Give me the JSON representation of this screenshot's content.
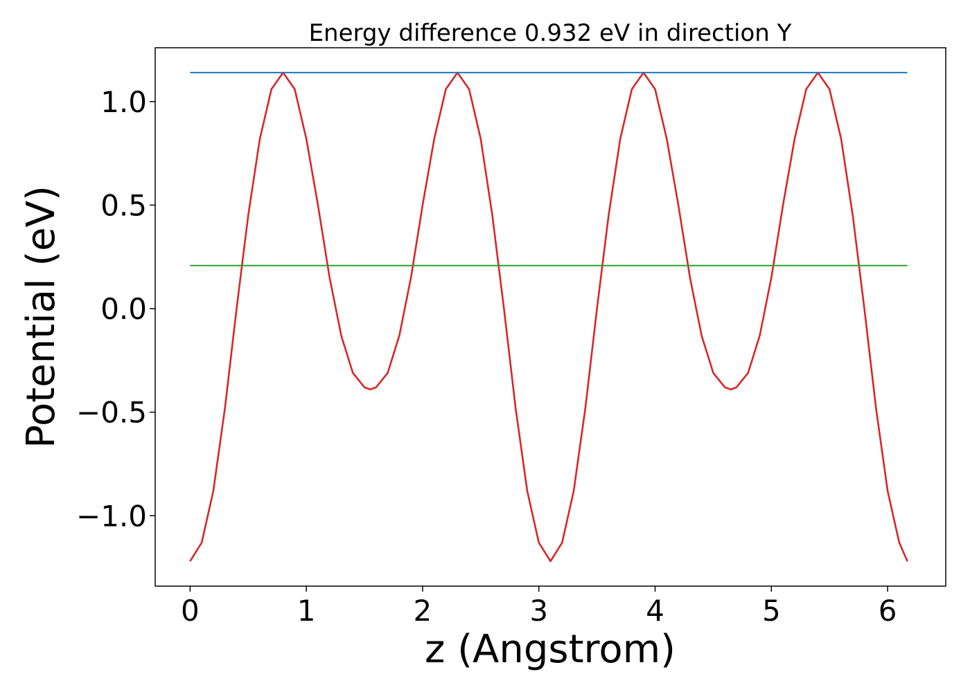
{
  "chart_data": {
    "type": "line",
    "title": "Energy difference 0.932 eV in direction Y",
    "xlabel": "z (Angstrom)",
    "ylabel": "Potential (eV)",
    "xlim": [
      -0.3,
      6.5
    ],
    "ylim": [
      -1.34,
      1.26
    ],
    "xticks": [
      0,
      1,
      2,
      3,
      4,
      5,
      6
    ],
    "xtick_labels": [
      "0",
      "1",
      "2",
      "3",
      "4",
      "5",
      "6"
    ],
    "yticks": [
      -1.0,
      -0.5,
      0.0,
      0.5,
      1.0
    ],
    "ytick_labels": [
      "−1.0",
      "−0.5",
      "0.0",
      "0.5",
      "1.0"
    ],
    "grid": false,
    "legend": "none",
    "series": [
      {
        "color": "#d62728",
        "x": [
          0.0,
          0.1,
          0.2,
          0.3,
          0.4,
          0.5,
          0.6,
          0.7,
          0.8,
          0.9,
          1.0,
          1.1,
          1.2,
          1.3,
          1.4,
          1.5,
          1.55,
          1.6,
          1.7,
          1.8,
          1.9,
          2.0,
          2.1,
          2.2,
          2.3,
          2.4,
          2.5,
          2.6,
          2.7,
          2.8,
          2.9,
          3.0,
          3.1,
          3.2,
          3.3,
          3.4,
          3.5,
          3.6,
          3.7,
          3.8,
          3.9,
          4.0,
          4.1,
          4.2,
          4.3,
          4.4,
          4.5,
          4.6,
          4.65,
          4.7,
          4.8,
          4.9,
          5.0,
          5.1,
          5.2,
          5.3,
          5.4,
          5.5,
          5.6,
          5.7,
          5.8,
          5.9,
          6.0,
          6.1,
          6.17
        ],
        "y": [
          -1.22,
          -1.13,
          -0.88,
          -0.48,
          -0.0,
          0.45,
          0.82,
          1.06,
          1.14,
          1.06,
          0.82,
          0.5,
          0.15,
          -0.13,
          -0.31,
          -0.38,
          -0.39,
          -0.38,
          -0.31,
          -0.13,
          0.15,
          0.5,
          0.82,
          1.06,
          1.14,
          1.06,
          0.82,
          0.45,
          -0.0,
          -0.48,
          -0.88,
          -1.13,
          -1.22,
          -1.13,
          -0.88,
          -0.48,
          -0.0,
          0.45,
          0.82,
          1.06,
          1.14,
          1.06,
          0.82,
          0.5,
          0.15,
          -0.13,
          -0.31,
          -0.38,
          -0.39,
          -0.38,
          -0.31,
          -0.13,
          0.15,
          0.5,
          0.82,
          1.06,
          1.14,
          1.06,
          0.82,
          0.45,
          -0.0,
          -0.48,
          -0.88,
          -1.13,
          -1.22
        ]
      },
      {
        "color": "#1f77b4",
        "x": [
          0.0,
          6.17
        ],
        "y": [
          1.14,
          1.14
        ]
      },
      {
        "color": "#2ca02c",
        "x": [
          0.0,
          6.17
        ],
        "y": [
          0.208,
          0.208
        ]
      }
    ]
  }
}
